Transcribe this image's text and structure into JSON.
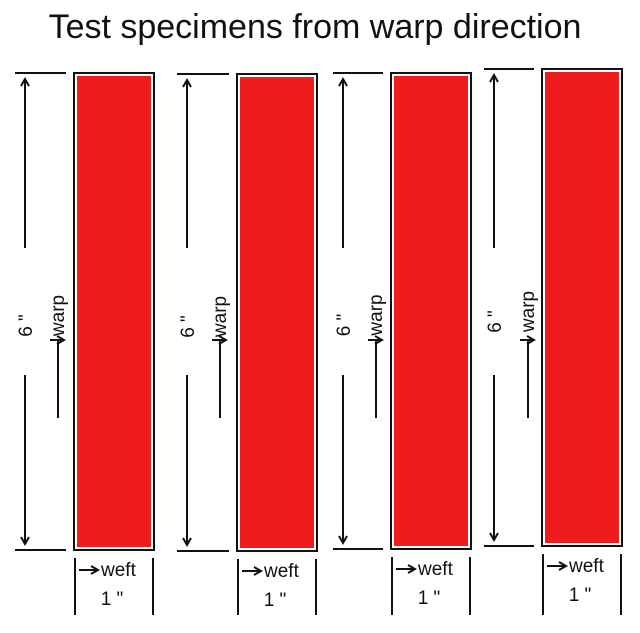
{
  "title": "Test specimens from warp direction",
  "specimen_color": "#ee1c1c",
  "specimens": [
    {
      "length_label": "6 \"",
      "direction_label": "warp",
      "width_direction_label": "weft",
      "width_label": "1 \""
    },
    {
      "length_label": "6 \"",
      "direction_label": "warp",
      "width_direction_label": "weft",
      "width_label": "1 \""
    },
    {
      "length_label": "6 \"",
      "direction_label": "warp",
      "width_direction_label": "weft",
      "width_label": "1 \""
    },
    {
      "length_label": "6 \"",
      "direction_label": "warp",
      "width_direction_label": "weft",
      "width_label": "1 \""
    }
  ]
}
